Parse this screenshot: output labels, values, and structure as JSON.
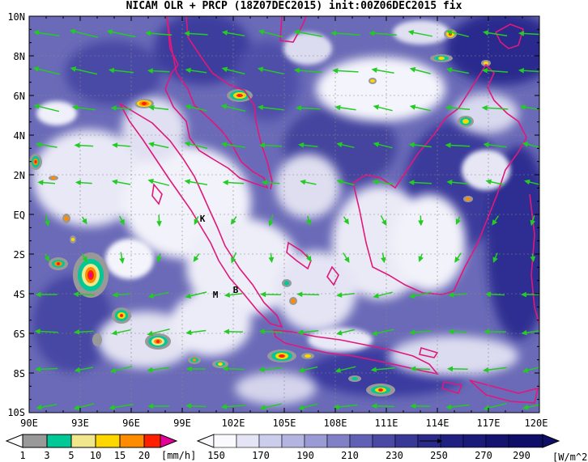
{
  "title": "NICAM OLR + PRCP (18Z07DEC2015) init:00Z06DEC2015 fix",
  "map": {
    "lon_labels": [
      "90E",
      "93E",
      "96E",
      "99E",
      "102E",
      "105E",
      "108E",
      "111E",
      "114E",
      "117E",
      "120E"
    ],
    "lat_labels": [
      "10N",
      "8N",
      "6N",
      "4N",
      "2N",
      "EQ",
      "2S",
      "4S",
      "6S",
      "8S",
      "10S"
    ],
    "markers": [
      "K",
      "M",
      "B"
    ],
    "colors": {
      "coast": "#e0187a",
      "wind": "#22cc22",
      "frame": "#000000"
    }
  },
  "precip_bar": {
    "labels": [
      "1",
      "3",
      "5",
      "10",
      "15",
      "20"
    ],
    "unit": "[mm/h]",
    "colors": [
      "#999999",
      "#00c896",
      "#f0e68c",
      "#ffd700",
      "#ff8c00",
      "#ff2000",
      "#e6009a"
    ]
  },
  "olr_bar": {
    "labels": [
      "150",
      "170",
      "190",
      "210",
      "230",
      "250",
      "270",
      "290"
    ],
    "unit": "[W/m^2]",
    "colors": [
      "#fafafe",
      "#e4e4f4",
      "#ccccec",
      "#b4b4e0",
      "#9a9ad4",
      "#8080c6",
      "#6060b4",
      "#4040a0",
      "#2a2a90",
      "#181878"
    ]
  }
}
